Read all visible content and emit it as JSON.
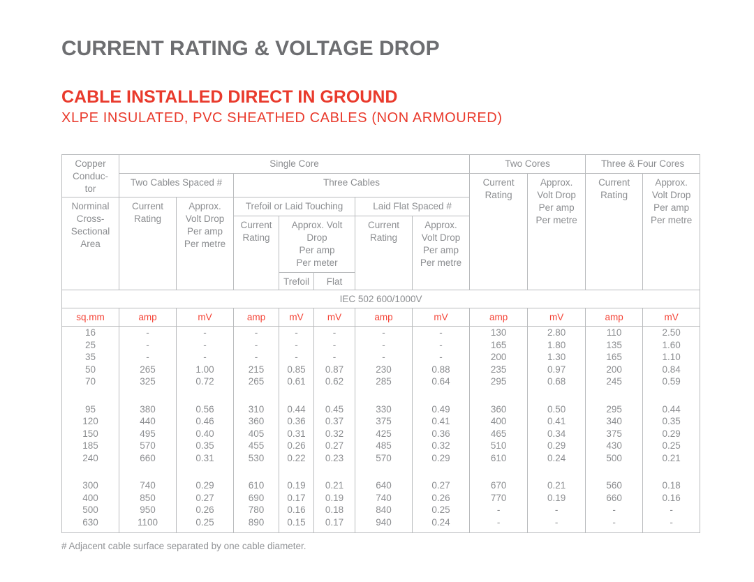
{
  "page": {
    "title": "CURRENT RATING & VOLTAGE DROP",
    "heading": "CABLE INSTALLED DIRECT IN GROUND",
    "subheading": "XLPE INSULATED, PVC SHEATHED CABLES (NON ARMOURED)",
    "footnote": "# Adjacent cable surface separated by one cable diameter."
  },
  "colors": {
    "title_gray": "#6d6e71",
    "heading_red": "#e93a2c",
    "units_red": "#f44336",
    "table_text_gray": "#8b8d90",
    "border_gray": "#b9bbbd"
  },
  "table": {
    "header": {
      "copper_conductor": "Copper\nConduc-\ntor",
      "single_core": "Single Core",
      "two_cores": "Two Cores",
      "three_four_cores": "Three & Four Cores",
      "two_cables_spaced": "Two Cables Spaced #",
      "three_cables": "Three Cables",
      "nominal_area": "Norminal\nCross-\nSectional\nArea",
      "current_rating": "Current\nRating",
      "approx_volt_drop_metre": "Approx.\nVolt Drop\nPer amp\nPer metre",
      "trefoil_or_laid_touching": "Trefoil or Laid Touching",
      "laid_flat_spaced": "Laid Flat Spaced #",
      "approx_volt_drop_meter": "Approx. Volt\nDrop\nPer amp\nPer meter",
      "trefoil": "Trefoil",
      "flat": "Flat"
    },
    "standard": "IEC 502 600/1000V",
    "units": [
      "sq.mm",
      "amp",
      "mV",
      "amp",
      "mV",
      "mV",
      "amp",
      "mV",
      "amp",
      "mV",
      "amp",
      "mV"
    ],
    "row_groups": [
      [
        [
          "16",
          "-",
          "-",
          "-",
          "-",
          "-",
          "-",
          "-",
          "130",
          "2.80",
          "110",
          "2.50"
        ],
        [
          "25",
          "-",
          "-",
          "-",
          "-",
          "-",
          "-",
          "-",
          "165",
          "1.80",
          "135",
          "1.60"
        ],
        [
          "35",
          "-",
          "-",
          "-",
          "-",
          "-",
          "-",
          "-",
          "200",
          "1.30",
          "165",
          "1.10"
        ],
        [
          "50",
          "265",
          "1.00",
          "215",
          "0.85",
          "0.87",
          "230",
          "0.88",
          "235",
          "0.97",
          "200",
          "0.84"
        ],
        [
          "70",
          "325",
          "0.72",
          "265",
          "0.61",
          "0.62",
          "285",
          "0.64",
          "295",
          "0.68",
          "245",
          "0.59"
        ]
      ],
      [
        [
          "95",
          "380",
          "0.56",
          "310",
          "0.44",
          "0.45",
          "330",
          "0.49",
          "360",
          "0.50",
          "295",
          "0.44"
        ],
        [
          "120",
          "440",
          "0.46",
          "360",
          "0.36",
          "0.37",
          "375",
          "0.41",
          "400",
          "0.41",
          "340",
          "0.35"
        ],
        [
          "150",
          "495",
          "0.40",
          "405",
          "0.31",
          "0.32",
          "425",
          "0.36",
          "465",
          "0.34",
          "375",
          "0.29"
        ],
        [
          "185",
          "570",
          "0.35",
          "455",
          "0.26",
          "0.27",
          "485",
          "0.32",
          "510",
          "0.29",
          "430",
          "0.25"
        ],
        [
          "240",
          "660",
          "0.31",
          "530",
          "0.22",
          "0.23",
          "570",
          "0.29",
          "610",
          "0.24",
          "500",
          "0.21"
        ]
      ],
      [
        [
          "300",
          "740",
          "0.29",
          "610",
          "0.19",
          "0.21",
          "640",
          "0.27",
          "670",
          "0.21",
          "560",
          "0.18"
        ],
        [
          "400",
          "850",
          "0.27",
          "690",
          "0.17",
          "0.19",
          "740",
          "0.26",
          "770",
          "0.19",
          "660",
          "0.16"
        ],
        [
          "500",
          "950",
          "0.26",
          "780",
          "0.16",
          "0.18",
          "840",
          "0.25",
          "-",
          "-",
          "-",
          "-"
        ],
        [
          "630",
          "1100",
          "0.25",
          "890",
          "0.15",
          "0.17",
          "940",
          "0.24",
          "-",
          "-",
          "-",
          "-"
        ]
      ]
    ]
  }
}
